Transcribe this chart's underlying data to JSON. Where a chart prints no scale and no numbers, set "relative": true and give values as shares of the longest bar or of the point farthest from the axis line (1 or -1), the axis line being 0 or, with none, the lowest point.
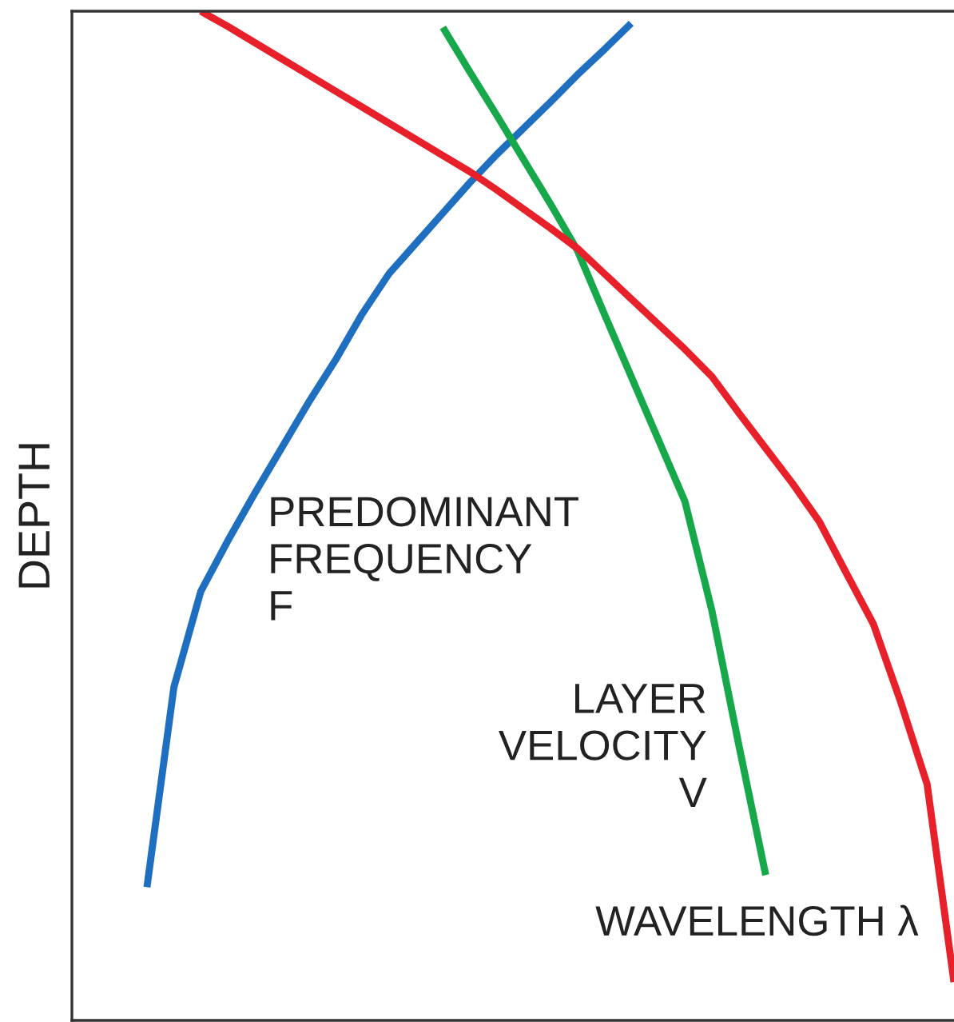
{
  "chart_data": {
    "type": "line",
    "relative": true,
    "ylabel": "DEPTH",
    "marker": "none",
    "line_style": "solid",
    "categories": [
      null,
      null,
      null,
      null,
      null,
      null,
      null,
      null,
      null,
      null,
      null,
      null,
      null,
      null,
      null,
      null,
      null,
      null,
      null,
      null,
      null,
      null,
      null,
      null,
      null,
      null,
      null,
      null,
      null,
      null,
      null
    ],
    "series": [
      {
        "name": "PREDOMINANT\nFREQUENCY\nF",
        "color": "#1f6fc0",
        "values": [
          0.132,
          0.33,
          0.425,
          0.475,
          0.522,
          0.567,
          0.612,
          0.654,
          0.7,
          0.74,
          0.77,
          0.8,
          0.83,
          0.858,
          0.884,
          0.91,
          0.937,
          0.962,
          0.988,
          null,
          null,
          null,
          null,
          null,
          null,
          null,
          null,
          null,
          null,
          null,
          null
        ]
      },
      {
        "name": "LAYER\nVELOCITY\nV",
        "color": "#16a84a",
        "values": [
          null,
          null,
          null,
          null,
          null,
          null,
          null,
          null,
          null,
          null,
          null,
          0.984,
          0.94,
          0.897,
          0.853,
          0.809,
          0.763,
          0.7,
          0.638,
          0.576,
          0.514,
          0.406,
          0.273,
          0.144,
          null,
          null,
          null,
          null,
          null,
          null,
          null
        ]
      },
      {
        "name": "WAVELENGTH λ",
        "color": "#e8202a",
        "values": [
          null,
          null,
          1.0,
          0.985,
          0.969,
          0.953,
          0.937,
          0.921,
          0.905,
          0.889,
          0.873,
          0.857,
          0.841,
          0.823,
          0.804,
          0.785,
          0.765,
          0.74,
          0.715,
          0.69,
          0.665,
          0.638,
          0.602,
          0.567,
          0.532,
          0.494,
          0.443,
          0.393,
          0.317,
          0.234,
          0.038
        ]
      }
    ]
  }
}
